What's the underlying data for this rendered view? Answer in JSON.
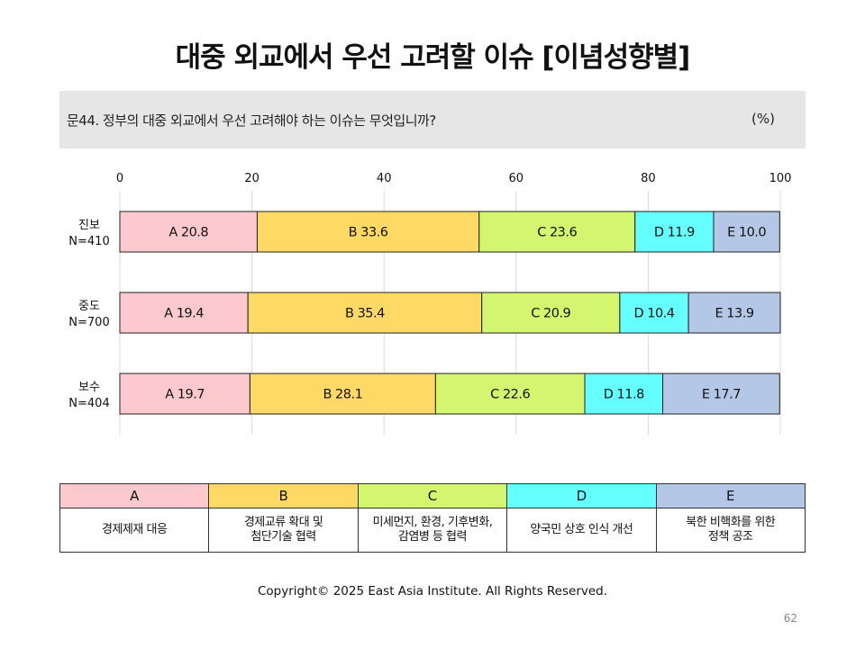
{
  "title": "대중 외교에서 우선 고려할 이슈 [이념성향별]",
  "question": {
    "text": "문44. 정부의 대중 외교에서 우선 고려해야 하는 이슈는 무엇입니까?",
    "unit": "(%)"
  },
  "chart_data": {
    "type": "bar",
    "orientation": "horizontal-stacked",
    "xlim": [
      0,
      100
    ],
    "x_ticks": [
      "0",
      "20",
      "40",
      "60",
      "80",
      "100"
    ],
    "categories": [
      {
        "label": "진보",
        "n": "N=410"
      },
      {
        "label": "중도",
        "n": "N=700"
      },
      {
        "label": "보수",
        "n": "N=404"
      }
    ],
    "series": [
      {
        "key": "A",
        "color": "#fcc9cf",
        "values": [
          20.8,
          19.4,
          19.7
        ]
      },
      {
        "key": "B",
        "color": "#ffd966",
        "values": [
          33.6,
          35.4,
          28.1
        ]
      },
      {
        "key": "C",
        "color": "#d3f56f",
        "values": [
          23.6,
          20.9,
          22.6
        ]
      },
      {
        "key": "D",
        "color": "#66ffff",
        "values": [
          11.9,
          10.4,
          11.8
        ]
      },
      {
        "key": "E",
        "color": "#b4c7e7",
        "values": [
          10.0,
          13.9,
          17.7
        ]
      }
    ],
    "data_labels": [
      [
        "A 20.8",
        "B 33.6",
        "C 23.6",
        "D 11.9",
        "E 10.0"
      ],
      [
        "A 19.4",
        "B 35.4",
        "C 20.9",
        "D 10.4",
        "E 13.9"
      ],
      [
        "A 19.7",
        "B 28.1",
        "C 22.6",
        "D 11.8",
        "E 17.7"
      ]
    ],
    "grid": true,
    "legend": "bottom-table"
  },
  "legend_table": [
    {
      "key": "A",
      "color": "#fcc9cf",
      "desc_lines": [
        "경제제재 대응"
      ]
    },
    {
      "key": "B",
      "color": "#ffd966",
      "desc_lines": [
        "경제교류 확대 및",
        "첨단기술 협력"
      ]
    },
    {
      "key": "C",
      "color": "#d3f56f",
      "desc_lines": [
        "미세먼지, 환경, 기후변화,",
        "감염병 등 협력"
      ]
    },
    {
      "key": "D",
      "color": "#66ffff",
      "desc_lines": [
        "양국민 상호 인식 개선"
      ]
    },
    {
      "key": "E",
      "color": "#b4c7e7",
      "desc_lines": [
        "북한 비핵화를 위한",
        "정책 공조"
      ]
    }
  ],
  "footer": {
    "copyright": "Copyright© 2025 East Asia Institute. All Rights Reserved.",
    "page_number": "62"
  }
}
